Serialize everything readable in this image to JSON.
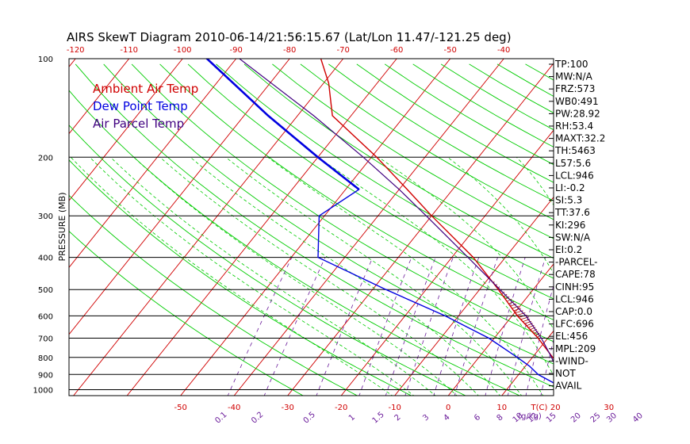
{
  "chart_data": {
    "type": "line",
    "title": "AIRS SkewT Diagram 2010-06-14/21:56:15.67 (Lat/Lon 11.47/-121.25 deg)",
    "ylabel": "PRESSURE (MB)",
    "xlabel": "T(C)",
    "mixing_ratio_label": "(g/kg)",
    "pressure_ticks": [
      100,
      200,
      300,
      400,
      500,
      600,
      700,
      800,
      900,
      1000
    ],
    "pressure_range": [
      1000,
      100
    ],
    "temp_ticks_bottom": [
      -50,
      -40,
      -30,
      -20,
      -10,
      0,
      10,
      20,
      30
    ],
    "temp_ticks_top": [
      -120,
      -110,
      -100,
      -90,
      -80,
      -70,
      -60,
      -50,
      -40
    ],
    "mixing_ratio_labels": [
      "0.1",
      "0.2",
      "0.5",
      "1",
      "1.5",
      "2",
      "3",
      "4",
      "6",
      "8",
      "10",
      "12",
      "15",
      "20",
      "25",
      "30",
      "40"
    ],
    "mixing_ratio_values": [
      0.1,
      0.2,
      0.5,
      1,
      1.5,
      2,
      3,
      4,
      6,
      8,
      10,
      12,
      15,
      20,
      25,
      30,
      40
    ],
    "legend": [
      {
        "name": "Ambient Air Temp",
        "color": "#d00000"
      },
      {
        "name": "Dew Point Temp",
        "color": "#0000e0"
      },
      {
        "name": "Air Parcel Temp",
        "color": "#400080"
      }
    ],
    "series": [
      {
        "name": "Ambient Air Temp",
        "color": "#d00000",
        "points": [
          {
            "p": 1000,
            "t": 25.3
          },
          {
            "p": 980,
            "t": 23.0
          },
          {
            "p": 950,
            "t": 22.6
          },
          {
            "p": 900,
            "t": 19.6
          },
          {
            "p": 850,
            "t": 16.8
          },
          {
            "p": 800,
            "t": 13.8
          },
          {
            "p": 700,
            "t": 8.2
          },
          {
            "p": 600,
            "t": 1.0
          },
          {
            "p": 500,
            "t": -6.5
          },
          {
            "p": 400,
            "t": -16.0
          },
          {
            "p": 300,
            "t": -30.0
          },
          {
            "p": 250,
            "t": -38.5
          },
          {
            "p": 200,
            "t": -49.0
          },
          {
            "p": 150,
            "t": -63.5
          },
          {
            "p": 120,
            "t": -69.0
          },
          {
            "p": 100,
            "t": -74.5
          }
        ]
      },
      {
        "name": "Dew Point Temp",
        "color": "#0000e0",
        "points": [
          {
            "p": 1000,
            "t": 21.0
          },
          {
            "p": 950,
            "t": 17.5
          },
          {
            "p": 900,
            "t": 13.6
          },
          {
            "p": 850,
            "t": 10.8
          },
          {
            "p": 800,
            "t": 7.2
          },
          {
            "p": 700,
            "t": -1.0
          },
          {
            "p": 600,
            "t": -12.5
          },
          {
            "p": 500,
            "t": -27.5
          },
          {
            "p": 400,
            "t": -45.0
          },
          {
            "p": 300,
            "t": -51.0
          },
          {
            "p": 250,
            "t": -47.5
          },
          {
            "p": 200,
            "t": -60.0
          },
          {
            "p": 150,
            "t": -75.5
          },
          {
            "p": 100,
            "t": -96.0
          }
        ]
      },
      {
        "name": "Air Parcel Temp",
        "color": "#400080",
        "points": [
          {
            "p": 1000,
            "t": 25.3
          },
          {
            "p": 946,
            "t": 18.5
          },
          {
            "p": 900,
            "t": 17.4
          },
          {
            "p": 850,
            "t": 15.6
          },
          {
            "p": 800,
            "t": 13.6
          },
          {
            "p": 700,
            "t": 8.8
          },
          {
            "p": 600,
            "t": 2.6
          },
          {
            "p": 500,
            "t": -6.2
          },
          {
            "p": 400,
            "t": -17.0
          },
          {
            "p": 300,
            "t": -31.0
          },
          {
            "p": 250,
            "t": -40.0
          },
          {
            "p": 200,
            "t": -51.5
          },
          {
            "p": 150,
            "t": -67.0
          },
          {
            "p": 100,
            "t": -90.0
          }
        ]
      }
    ],
    "indices": [
      "TP:100",
      "MW:N/A",
      "FRZ:573",
      "WB0:491",
      "PW:28.92",
      "RH:53.4",
      "MAXT:32.2",
      "TH:5463",
      "L57:5.6",
      "LCL:946",
      "LI:-0.2",
      "SI:5.3",
      "TT:37.6",
      "KI:296",
      "SW:N/A",
      "EI:0.2",
      "-PARCEL-",
      "CAPE:78",
      "CINH:95",
      "LCL:946",
      "CAP:0.0",
      "LFC:696",
      "EL:456",
      "MPL:209",
      "-WIND-",
      "NOT",
      "AVAIL"
    ],
    "colors": {
      "temperature_lines": "#d00000",
      "dry_adiabats": "#00cc00",
      "moist_adiabats": "#00cc00",
      "mixing_ratio_lines": "#6a1b9a",
      "isobars": "#000000",
      "top_axis_labels": "#d00000",
      "bottom_axis_labels": "#d00000"
    }
  }
}
